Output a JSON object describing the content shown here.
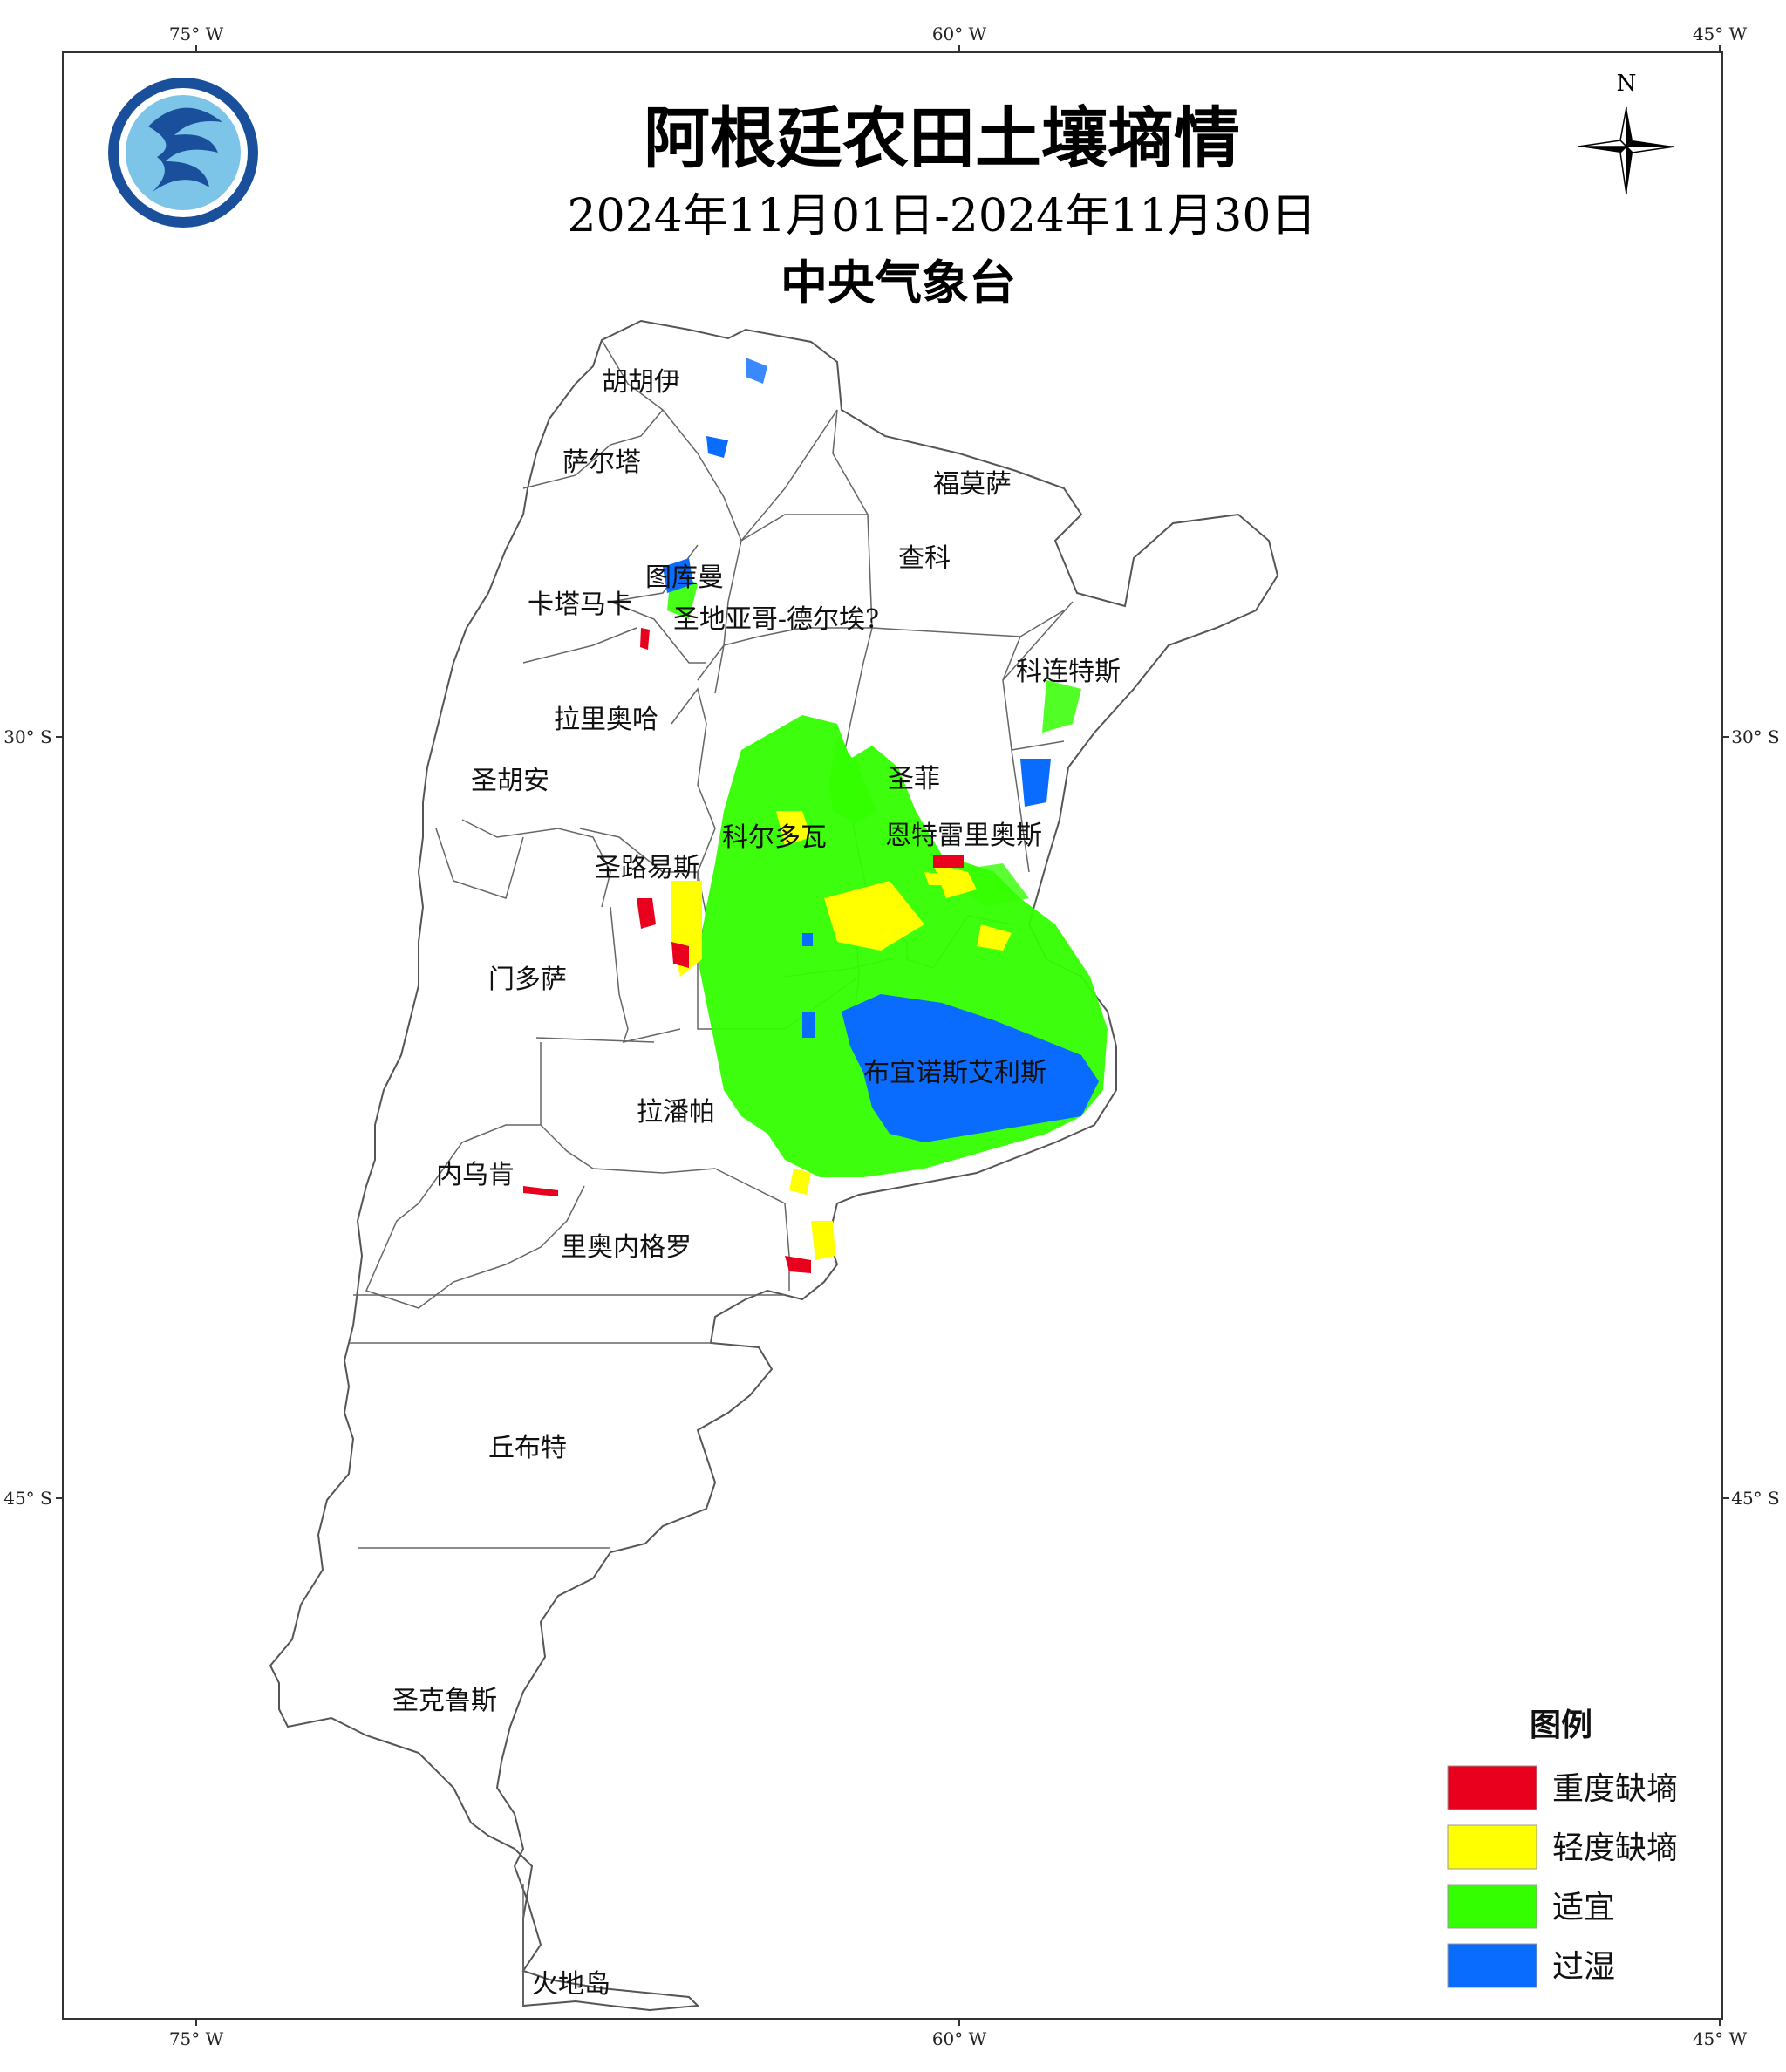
{
  "map": {
    "title": "阿根廷农田土壤墒情",
    "date_range": "2024年11月01日-2024年11月30日",
    "agency": "中央气象台",
    "north_label": "N",
    "graticule": {
      "top_lon": [
        "75° W",
        "60° W",
        "45° W"
      ],
      "bottom_lon": [
        "75° W",
        "60° W",
        "45° W"
      ],
      "left_lat": [
        "30° S",
        "45° S"
      ],
      "right_lat": [
        "30° S",
        "45° S"
      ]
    },
    "provinces": [
      "胡胡伊",
      "萨尔塔",
      "福莫萨",
      "查科",
      "图库曼",
      "卡塔马卡",
      "圣地亚哥-德尔埃?",
      "科连特斯",
      "拉里奥哈",
      "圣胡安",
      "圣菲",
      "科尔多瓦",
      "恩特雷里奥斯",
      "圣路易斯",
      "门多萨",
      "布宜诺斯艾利斯",
      "拉潘帕",
      "内乌肯",
      "里奥内格罗",
      "丘布特",
      "圣克鲁斯",
      "火地岛"
    ],
    "legend": {
      "title": "图例",
      "items": [
        {
          "label": "重度缺墒",
          "color": "#e8001c"
        },
        {
          "label": "轻度缺墒",
          "color": "#ffff00"
        },
        {
          "label": "适宜",
          "color": "#33ff00"
        },
        {
          "label": "过湿",
          "color": "#0a6cff"
        }
      ]
    }
  }
}
